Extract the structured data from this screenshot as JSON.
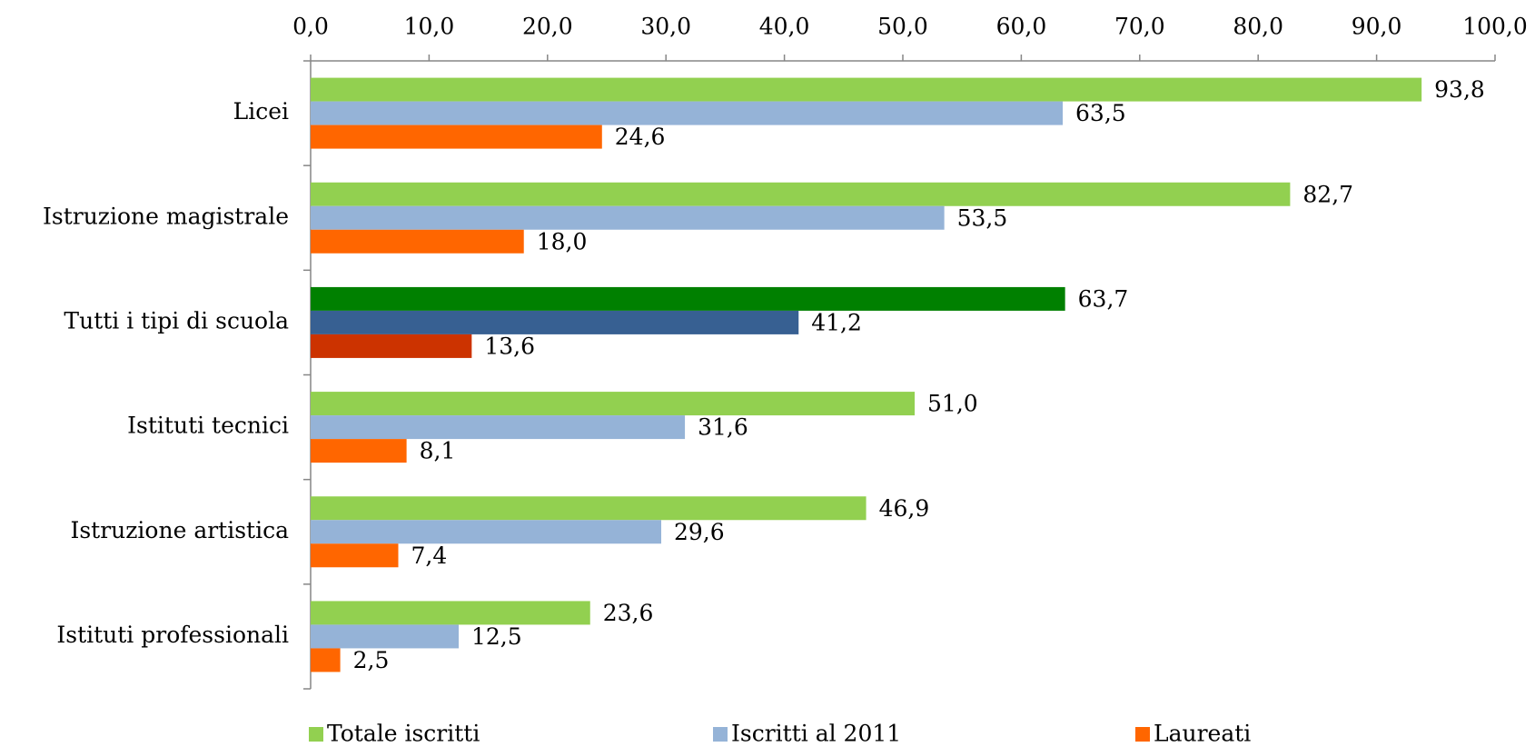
{
  "chart_data": {
    "type": "hbar",
    "categories": [
      "Licei",
      "Istruzione magistrale",
      "Tutti i tipi di scuola",
      "Istituti tecnici",
      "Istruzione artistica",
      "Istituti professionali"
    ],
    "series": [
      {
        "name": "Totale iscritti",
        "color": "#92d050",
        "colors": [
          "#92d050",
          "#92d050",
          "#008000",
          "#92d050",
          "#92d050",
          "#92d050"
        ],
        "values": [
          93.8,
          82.7,
          63.7,
          51.0,
          46.9,
          23.6
        ],
        "value_labels": [
          "93,8",
          "82,7",
          "63,7",
          "51,0",
          "46,9",
          "23,6"
        ]
      },
      {
        "name": "Iscritti al 2011",
        "color": "#95b3d7",
        "colors": [
          "#95b3d7",
          "#95b3d7",
          "#376092",
          "#95b3d7",
          "#95b3d7",
          "#95b3d7"
        ],
        "values": [
          63.5,
          53.5,
          41.2,
          31.6,
          29.6,
          12.5
        ],
        "value_labels": [
          "63,5",
          "53,5",
          "41,2",
          "31,6",
          "29,6",
          "12,5"
        ]
      },
      {
        "name": "Laureati",
        "color": "#ff6600",
        "colors": [
          "#ff6600",
          "#ff6600",
          "#cc3300",
          "#ff6600",
          "#ff6600",
          "#ff6600"
        ],
        "values": [
          24.6,
          18.0,
          13.6,
          8.1,
          7.4,
          2.5
        ],
        "value_labels": [
          "24,6",
          "18,0",
          "13,6",
          "8,1",
          "7,4",
          "2,5"
        ]
      }
    ],
    "xlim": [
      0,
      100
    ],
    "xticks": [
      {
        "value": 0,
        "label": "0,0"
      },
      {
        "value": 10,
        "label": "10,0"
      },
      {
        "value": 20,
        "label": "20,0"
      },
      {
        "value": 30,
        "label": "30,0"
      },
      {
        "value": 40,
        "label": "40,0"
      },
      {
        "value": 50,
        "label": "50,0"
      },
      {
        "value": 60,
        "label": "60,0"
      },
      {
        "value": 70,
        "label": "70,0"
      },
      {
        "value": 80,
        "label": "80,0"
      },
      {
        "value": 90,
        "label": "90,0"
      },
      {
        "value": 100,
        "label": "100,0"
      }
    ],
    "x_axis_position": "top",
    "legend": "bottom",
    "grid": false
  }
}
